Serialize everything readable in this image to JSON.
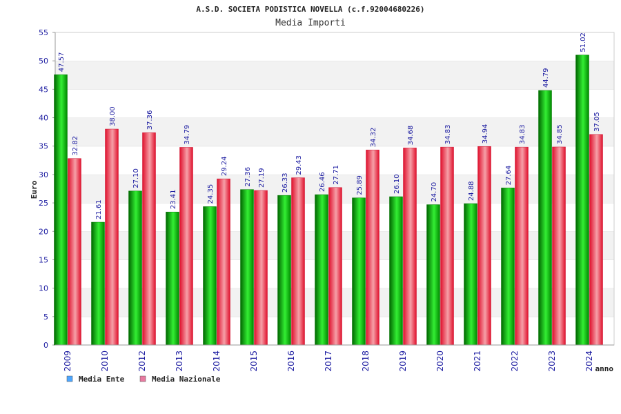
{
  "chart_data": {
    "type": "bar",
    "title": "A.S.D. SOCIETA PODISTICA NOVELLA (c.f.92004680226)",
    "subtitle": "Media Importi",
    "xlabel": "anno",
    "ylabel": "Euro",
    "ylim": [
      0,
      55
    ],
    "yticks": [
      0,
      5,
      10,
      15,
      20,
      25,
      30,
      35,
      40,
      45,
      50,
      55
    ],
    "categories": [
      "2009",
      "2010",
      "2012",
      "2013",
      "2014",
      "2015",
      "2016",
      "2017",
      "2018",
      "2019",
      "2020",
      "2021",
      "2022",
      "2023",
      "2024"
    ],
    "series": [
      {
        "name": "Media Ente",
        "color": "#00b000",
        "legend_color": "#4da6ff",
        "values": [
          47.57,
          21.61,
          27.1,
          23.41,
          24.35,
          27.36,
          26.33,
          26.46,
          25.89,
          26.1,
          24.7,
          24.88,
          27.64,
          44.79,
          51.02
        ],
        "labels": [
          "47.57",
          "21.61",
          "27.10",
          "23.41",
          "24.35",
          "27.36",
          "26.33",
          "26.46",
          "25.89",
          "26.10",
          "24.70",
          "24.88",
          "27.64",
          "44.79",
          "51.02"
        ]
      },
      {
        "name": "Media Nazionale",
        "color": "#e8203c",
        "legend_color": "#e87aa0",
        "values": [
          32.82,
          38.0,
          37.36,
          34.79,
          29.24,
          27.19,
          29.43,
          27.71,
          34.32,
          34.68,
          34.83,
          34.94,
          34.83,
          34.85,
          37.05
        ],
        "labels": [
          "32.82",
          "38.00",
          "37.36",
          "34.79",
          "29.24",
          "27.19",
          "29.43",
          "27.71",
          "34.32",
          "34.68",
          "34.83",
          "34.94",
          "34.83",
          "34.85",
          "37.05"
        ]
      }
    ],
    "grid": true,
    "legend_position": "bottom-left"
  }
}
